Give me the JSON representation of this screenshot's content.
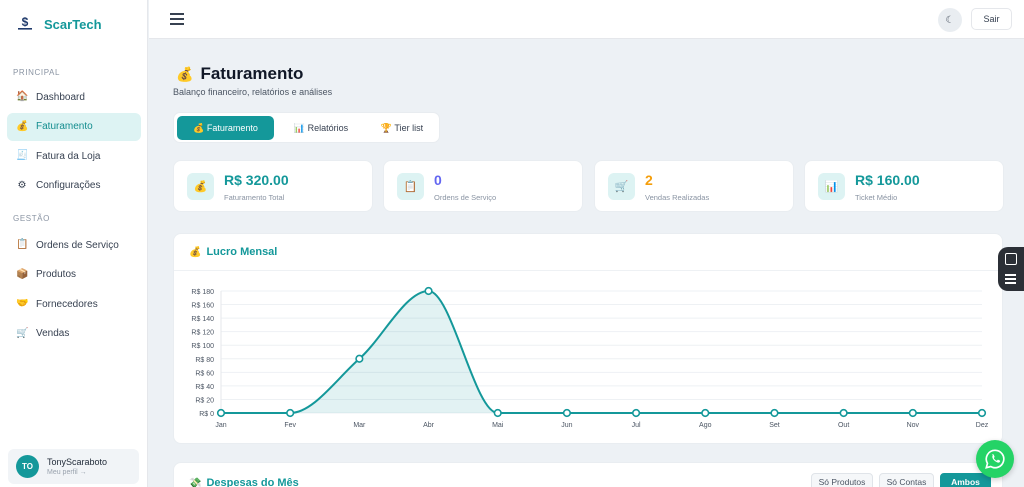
{
  "brand": {
    "name": "ScarTech",
    "logo_icon": "scartech-logo-icon"
  },
  "sidebar": {
    "sections": [
      {
        "label": "PRINCIPAL",
        "items": [
          {
            "label": "Dashboard",
            "icon": "house-icon",
            "glyph": "🏠",
            "active": false
          },
          {
            "label": "Faturamento",
            "icon": "money-bag-icon",
            "glyph": "💰",
            "active": true
          },
          {
            "label": "Fatura da Loja",
            "icon": "receipt-icon",
            "glyph": "🧾",
            "active": false
          },
          {
            "label": "Configurações",
            "icon": "gear-icon",
            "glyph": "⚙",
            "active": false
          }
        ]
      },
      {
        "label": "GESTÃO",
        "items": [
          {
            "label": "Ordens de Serviço",
            "icon": "clipboard-icon",
            "glyph": "📋",
            "active": false
          },
          {
            "label": "Produtos",
            "icon": "package-icon",
            "glyph": "📦",
            "active": false
          },
          {
            "label": "Fornecedores",
            "icon": "handshake-icon",
            "glyph": "🤝",
            "active": false
          },
          {
            "label": "Vendas",
            "icon": "cart-icon",
            "glyph": "🛒",
            "active": false
          }
        ]
      }
    ],
    "user": {
      "initials": "TO",
      "name": "TonyScaraboto",
      "subtitle": "Meu perfil →"
    }
  },
  "topbar": {
    "theme_glyph": "☾",
    "logout_label": "Sair"
  },
  "page": {
    "title": "Faturamento",
    "title_glyph": "💰",
    "subtitle": "Balanço financeiro, relatórios e análises"
  },
  "tabs": [
    {
      "label": "💰 Faturamento",
      "active": true
    },
    {
      "label": "📊 Relatórios",
      "active": false
    },
    {
      "label": "🏆 Tier list",
      "active": false
    }
  ],
  "stats": [
    {
      "value": "R$ 320.00",
      "label": "Faturamento Total",
      "glyph": "💰",
      "color": "#14989a"
    },
    {
      "value": "0",
      "label": "Ordens de Serviço",
      "glyph": "📋",
      "color": "#6366f1"
    },
    {
      "value": "2",
      "label": "Vendas Realizadas",
      "glyph": "🛒",
      "color": "#f59e0b"
    },
    {
      "value": "R$ 160.00",
      "label": "Ticket Médio",
      "glyph": "📊",
      "color": "#14989a"
    }
  ],
  "chart_card": {
    "title": "Lucro Mensal",
    "title_glyph": "💰"
  },
  "chart_data": {
    "type": "line",
    "title": "Lucro Mensal",
    "categories": [
      "Jan",
      "Fev",
      "Mar",
      "Abr",
      "Mai",
      "Jun",
      "Jul",
      "Ago",
      "Set",
      "Out",
      "Nov",
      "Dez"
    ],
    "series": [
      {
        "values": [
          0,
          0,
          80,
          180,
          0,
          0,
          0,
          0,
          0,
          0,
          0,
          0
        ]
      }
    ],
    "y_ticks": [
      "R$ 0",
      "R$ 20",
      "R$ 40",
      "R$ 60",
      "R$ 80",
      "R$ 100",
      "R$ 120",
      "R$ 140",
      "R$ 160",
      "R$ 180"
    ],
    "ylim": [
      0,
      180
    ],
    "grid": true,
    "fill": true,
    "color": "#14989a"
  },
  "expense_card": {
    "title": "Despesas do Mês",
    "title_glyph": "💸",
    "filters": [
      {
        "label": "Só Produtos",
        "active": false
      },
      {
        "label": "Só Contas",
        "active": false
      },
      {
        "label": "Ambos",
        "active": true
      }
    ]
  }
}
